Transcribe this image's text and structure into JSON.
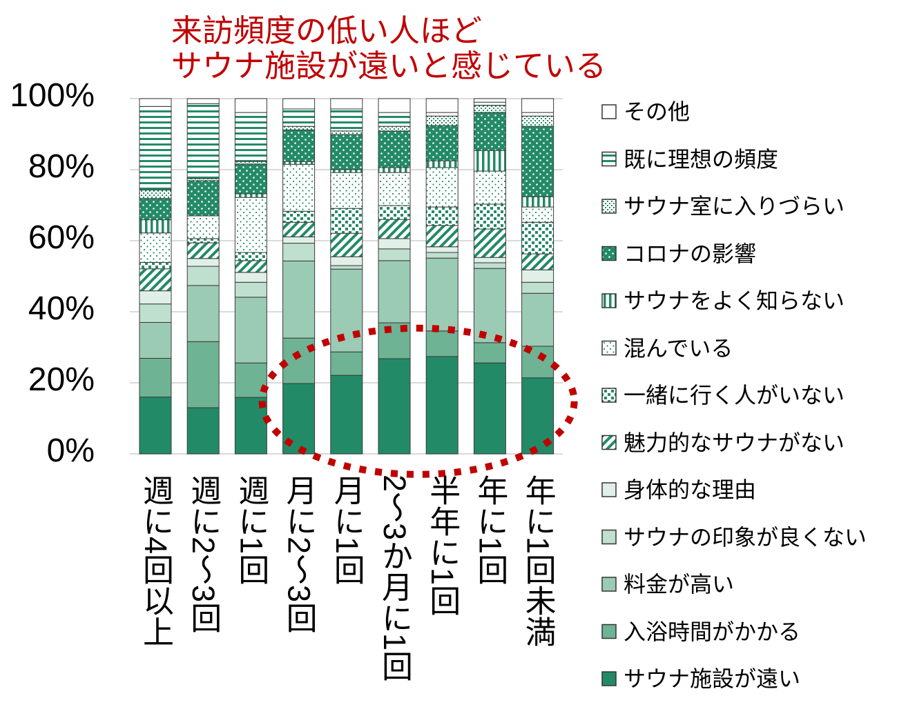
{
  "chart_data": {
    "type": "bar",
    "stacked": true,
    "title_lines": [
      "来訪頻度の低い人ほど",
      "サウナ施設が遠いと感じている"
    ],
    "title_color": "#c00000",
    "categories": [
      "週に4回以上",
      "週に2～3回",
      "週に1回",
      "月に2～3回",
      "月に1回",
      "2～3か月に1回",
      "半年に1回",
      "年に1回",
      "年に1回未満"
    ],
    "ylim": [
      0,
      100
    ],
    "yticks": [
      {
        "value": 0,
        "label": "0%"
      },
      {
        "value": 20,
        "label": "20%"
      },
      {
        "value": 40,
        "label": "40%"
      },
      {
        "value": 60,
        "label": "60%"
      },
      {
        "value": 80,
        "label": "80%"
      },
      {
        "value": 100,
        "label": "100%"
      }
    ],
    "grid": true,
    "legend_position": "right",
    "series": [
      {
        "name": "サウナ施設が遠い",
        "color": "#238a67",
        "pattern": "solid",
        "values": [
          16.0,
          13.0,
          15.9,
          19.8,
          22.1,
          26.8,
          27.4,
          25.6,
          21.4
        ]
      },
      {
        "name": "入浴時間がかかる",
        "color": "#6db394",
        "pattern": "solid",
        "values": [
          10.9,
          18.6,
          9.7,
          12.8,
          6.6,
          10.1,
          7.2,
          5.7,
          8.9
        ]
      },
      {
        "name": "料金が高い",
        "color": "#9ccbb5",
        "pattern": "solid",
        "values": [
          10.1,
          15.8,
          18.5,
          21.7,
          23.3,
          17.5,
          20.5,
          20.9,
          14.9
        ]
      },
      {
        "name": "サウナの印象が良くない",
        "color": "#bfdfcf",
        "pattern": "solid",
        "values": [
          5.2,
          5.4,
          4.2,
          5.0,
          1.0,
          3.3,
          1.6,
          1.6,
          3.1
        ]
      },
      {
        "name": "身体的な理由",
        "color": "#e0f0e8",
        "pattern": "solid",
        "values": [
          3.7,
          2.2,
          2.8,
          1.8,
          2.5,
          2.9,
          1.6,
          1.5,
          3.5
        ]
      },
      {
        "name": "魅力的なサウナがない",
        "color": "#238a67",
        "pattern": "diagonal-stripes",
        "values": [
          6.2,
          4.4,
          3.3,
          4.1,
          6.6,
          5.4,
          6.0,
          8.0,
          4.5
        ]
      },
      {
        "name": "一緒に行く人がいない",
        "color": "#238a67",
        "pattern": "checker",
        "values": [
          1.8,
          1.2,
          2.3,
          3.1,
          7.0,
          3.9,
          5.2,
          7.0,
          8.9
        ]
      },
      {
        "name": "混んでいる",
        "color": "#238a67",
        "pattern": "dots",
        "values": [
          8.3,
          6.4,
          15.5,
          13.2,
          10.1,
          9.3,
          11.1,
          9.3,
          4.3
        ]
      },
      {
        "name": "サウナをよく知らない",
        "color": "#238a67",
        "pattern": "vertical-stripes",
        "values": [
          3.7,
          0.0,
          1.0,
          0.8,
          0.8,
          1.4,
          1.9,
          5.8,
          2.9
        ]
      },
      {
        "name": "コロナの影響",
        "color": "#238a67",
        "pattern": "dots-on-dark",
        "values": [
          6.0,
          9.9,
          8.4,
          8.9,
          9.9,
          10.3,
          9.9,
          10.7,
          19.8
        ]
      },
      {
        "name": "サウナ室に入りづらい",
        "color": "#238a67",
        "pattern": "fine-dots",
        "values": [
          2.4,
          0.6,
          0.7,
          1.0,
          1.0,
          1.3,
          2.7,
          2.0,
          2.9
        ]
      },
      {
        "name": "既に理想の頻度",
        "color": "#238a67",
        "pattern": "horizontal-stripes",
        "values": [
          23.5,
          21.1,
          13.8,
          4.9,
          6.2,
          3.9,
          1.0,
          0.9,
          1.0
        ]
      },
      {
        "name": "その他",
        "color": "#ffffff",
        "pattern": "solid",
        "values": [
          2.2,
          1.4,
          3.9,
          2.9,
          2.9,
          3.9,
          3.9,
          1.0,
          3.9
        ]
      }
    ],
    "highlight": {
      "category_range": [
        3,
        8
      ],
      "color": "#c00000"
    }
  }
}
